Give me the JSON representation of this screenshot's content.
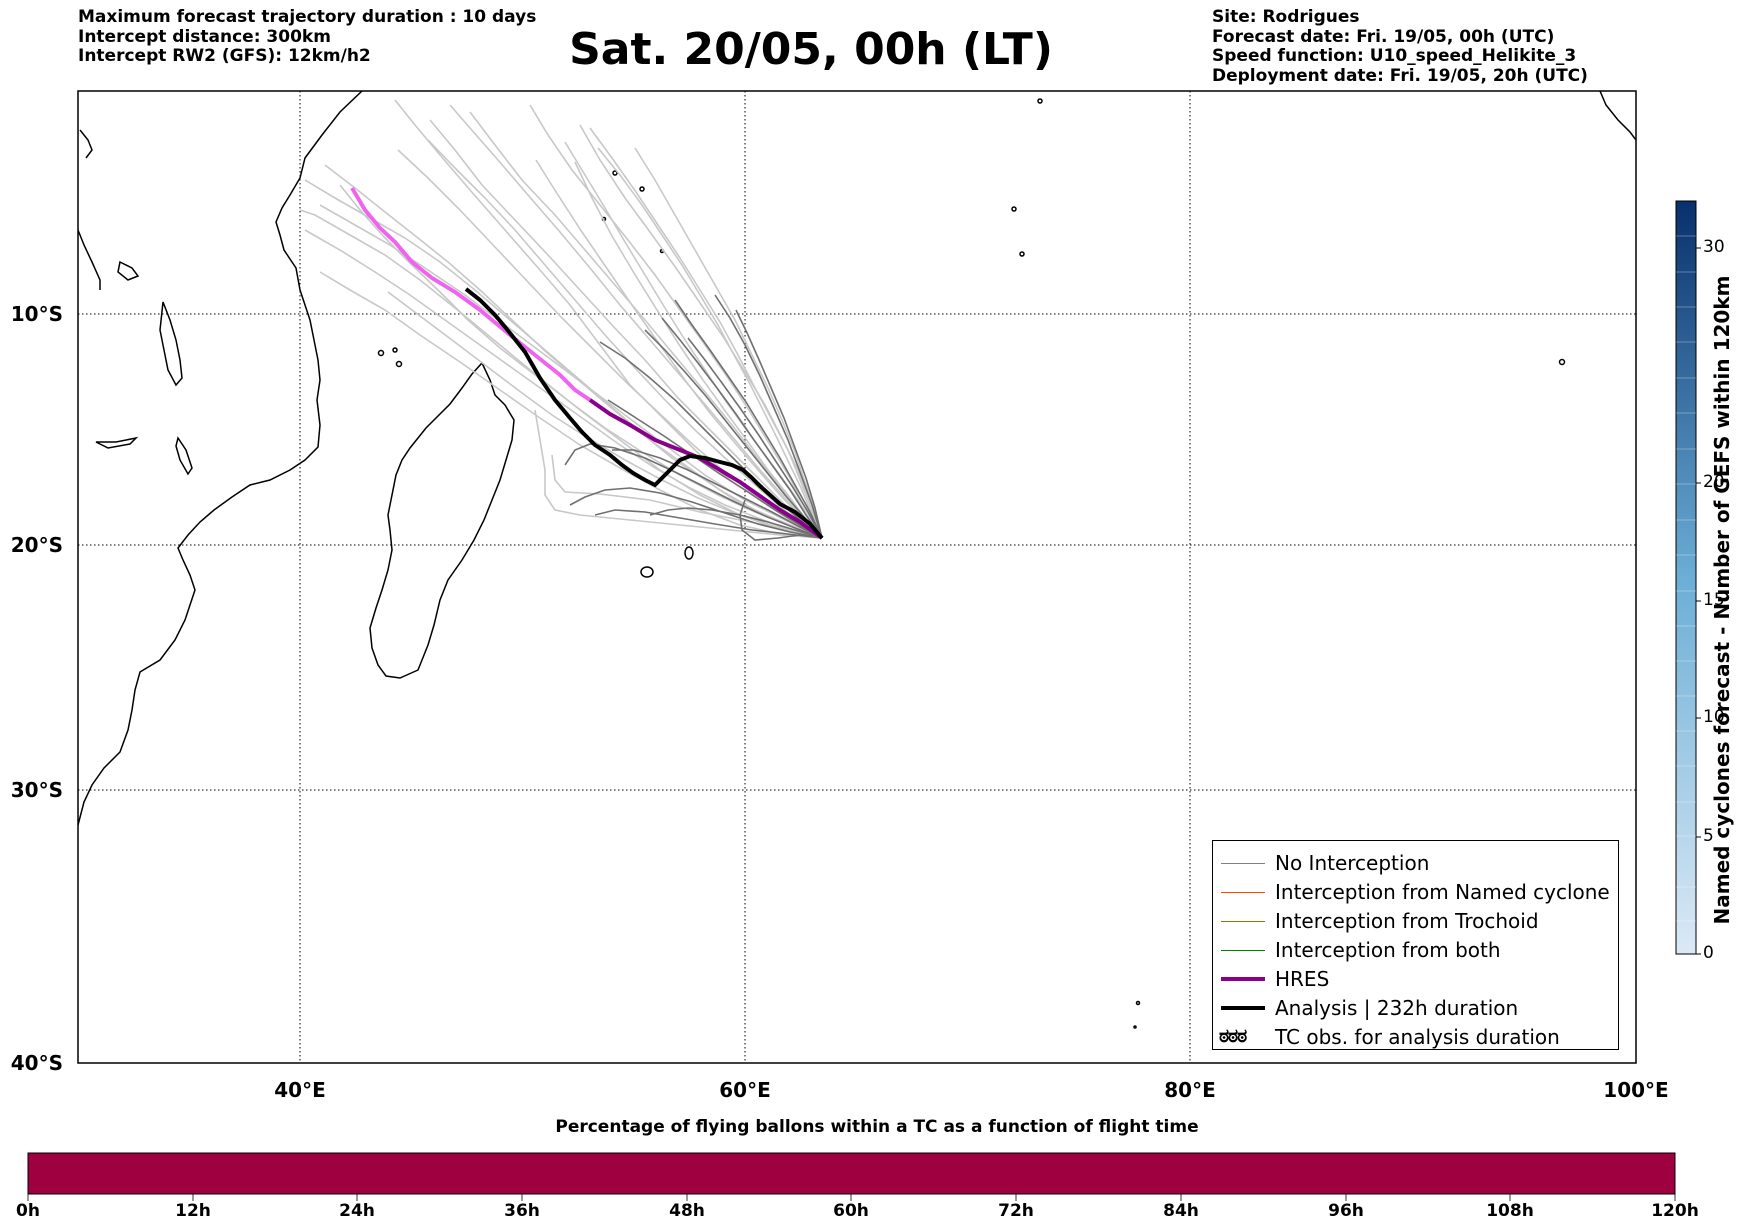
{
  "header_left": [
    "Maximum forecast trajectory duration : 10 days",
    "Intercept distance: 300km",
    "Intercept RW2 (GFS):  12km/h2"
  ],
  "title": "Sat. 20/05, 00h (LT)",
  "header_right": [
    "Site: Rodrigues",
    "Forecast date: Fri. 19/05, 00h (UTC)",
    "Speed function: U10_speed_Helikite_3",
    "Deployment date: Fri. 19/05, 20h (UTC)"
  ],
  "map": {
    "lon_labels": [
      "40°E",
      "60°E",
      "80°E",
      "100°E"
    ],
    "lat_labels": [
      "10°S",
      "20°S",
      "30°S",
      "40°S"
    ],
    "site": "Rodrigues"
  },
  "legend": {
    "items": [
      {
        "label": "No Interception",
        "color": "#808080"
      },
      {
        "label": "Interception from Named cyclone",
        "color": "#ff4500"
      },
      {
        "label": "Interception from Trochoid",
        "color": "#808000"
      },
      {
        "label": "Interception from both",
        "color": "#008000"
      },
      {
        "label": "HRES",
        "color": "#8b008b"
      },
      {
        "label": "Analysis | 232h duration",
        "color": "#000000"
      },
      {
        "label": "TC obs. for analysis duration",
        "symbol": "ಠಠಠ"
      }
    ]
  },
  "colorbar_vertical": {
    "label": "Named cyclones forecast - Number of GEFS within 120km",
    "ticks": [
      "0",
      "5",
      "10",
      "15",
      "20",
      "30"
    ],
    "colors": [
      "#dbe9f6",
      "#08306b"
    ]
  },
  "colorbar_bottom": {
    "title": "Percentage of flying ballons within a TC as a function of flight time",
    "ticks": [
      "0h",
      "12h",
      "24h",
      "36h",
      "48h",
      "60h",
      "72h",
      "84h",
      "96h",
      "108h",
      "120h"
    ],
    "color": "#9f0040"
  }
}
